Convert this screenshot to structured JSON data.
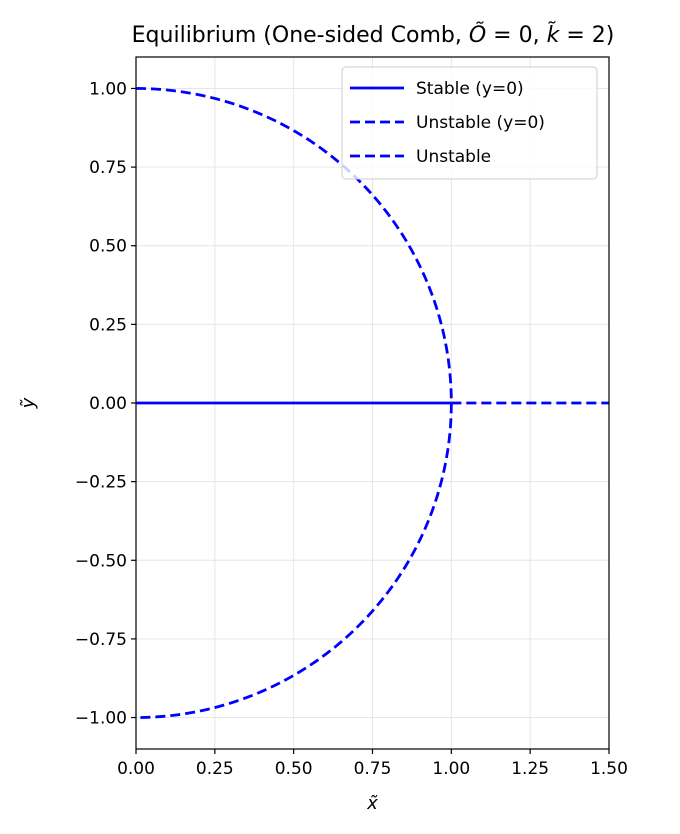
{
  "chart_data": {
    "type": "line",
    "title": "Equilibrium (One-sided Comb, Õ = 0, k̃ = 2)",
    "xlabel": "x̃",
    "ylabel": "ỹ",
    "xlim": [
      0,
      1.5
    ],
    "ylim": [
      -1.1,
      1.1
    ],
    "x_ticks": [
      0.0,
      0.25,
      0.5,
      0.75,
      1.0,
      1.25,
      1.5
    ],
    "x_tick_labels": [
      "0.00",
      "0.25",
      "0.50",
      "0.75",
      "1.00",
      "1.25",
      "1.50"
    ],
    "y_ticks": [
      1.0,
      0.75,
      0.5,
      0.25,
      0.0,
      -0.25,
      -0.5,
      -0.75,
      -1.0
    ],
    "y_tick_labels": [
      "1.00",
      "0.75",
      "0.50",
      "0.25",
      "0.00",
      "−0.25",
      "−0.50",
      "−0.75",
      "−1.00"
    ],
    "grid": true,
    "legend_position": "top-right",
    "colors": {
      "series": "#0000ff",
      "grid": "#e6e6e6",
      "axes": "#000000"
    },
    "series": [
      {
        "name": "Stable (y=0)",
        "style": "solid",
        "shape": "segment",
        "x": [
          0.0,
          1.0
        ],
        "y": [
          0.0,
          0.0
        ]
      },
      {
        "name": "Unstable (y=0)",
        "style": "dashed",
        "shape": "segment",
        "x": [
          1.0,
          1.5
        ],
        "y": [
          0.0,
          0.0
        ]
      },
      {
        "name": "Unstable",
        "style": "dashed",
        "shape": "semicircle",
        "center": [
          0.0,
          0.0
        ],
        "radius": 1.0
      }
    ]
  }
}
